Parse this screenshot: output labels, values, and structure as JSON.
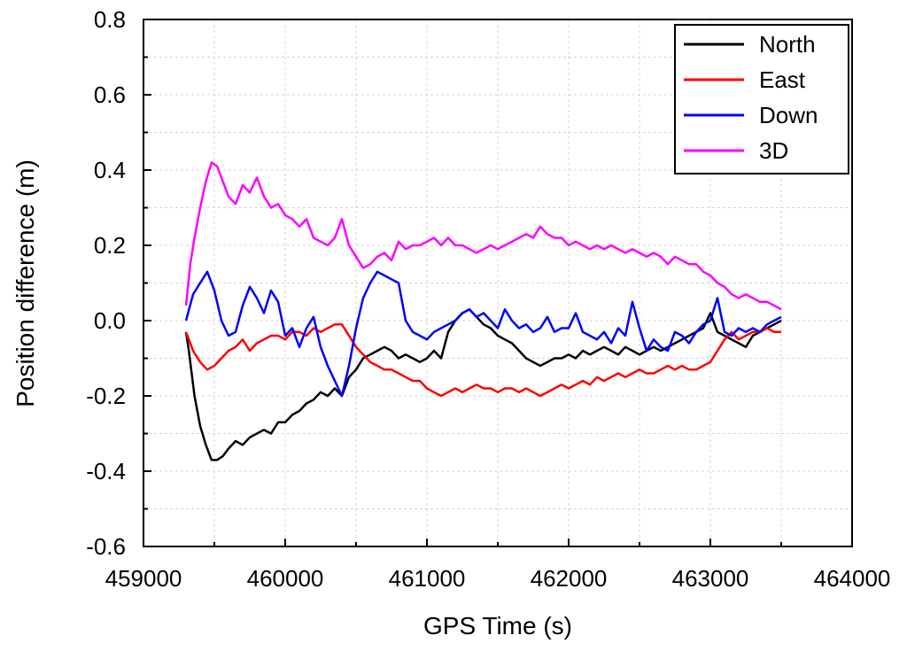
{
  "chart_data": {
    "type": "line",
    "xlabel": "GPS Time (s)",
    "ylabel": "Position difference (m)",
    "xlim": [
      459000,
      464000
    ],
    "ylim": [
      -0.6,
      0.8
    ],
    "x_ticks": [
      459000,
      460000,
      461000,
      462000,
      463000,
      464000
    ],
    "x_tick_labels": [
      "459000",
      "460000",
      "461000",
      "462000",
      "463000",
      "464000"
    ],
    "y_ticks": [
      -0.6,
      -0.4,
      -0.2,
      0.0,
      0.2,
      0.4,
      0.6,
      0.8
    ],
    "y_tick_labels": [
      "-0.6",
      "-0.4",
      "-0.2",
      "0.0",
      "0.2",
      "0.4",
      "0.6",
      "0.8"
    ],
    "grid": true,
    "legend_position": "top-right",
    "series": [
      {
        "name": "North",
        "color": "#000000",
        "x": [
          459300,
          459320,
          459360,
          459400,
          459440,
          459480,
          459520,
          459560,
          459600,
          459650,
          459700,
          459750,
          459800,
          459850,
          459900,
          459950,
          460000,
          460050,
          460100,
          460150,
          460200,
          460250,
          460300,
          460350,
          460400,
          460450,
          460500,
          460550,
          460600,
          460650,
          460700,
          460750,
          460800,
          460850,
          460900,
          460950,
          461000,
          461050,
          461100,
          461150,
          461200,
          461250,
          461300,
          461350,
          461400,
          461450,
          461500,
          461550,
          461600,
          461650,
          461700,
          461750,
          461800,
          461850,
          461900,
          461950,
          462000,
          462050,
          462100,
          462150,
          462200,
          462250,
          462300,
          462350,
          462400,
          462450,
          462500,
          462550,
          462600,
          462650,
          462700,
          462750,
          462800,
          462850,
          462900,
          462950,
          463000,
          463050,
          463100,
          463150,
          463200,
          463250,
          463300,
          463350,
          463400,
          463450,
          463500
        ],
        "y": [
          -0.03,
          -0.08,
          -0.2,
          -0.28,
          -0.33,
          -0.37,
          -0.37,
          -0.36,
          -0.34,
          -0.32,
          -0.33,
          -0.31,
          -0.3,
          -0.29,
          -0.3,
          -0.27,
          -0.27,
          -0.25,
          -0.24,
          -0.22,
          -0.21,
          -0.19,
          -0.2,
          -0.18,
          -0.2,
          -0.15,
          -0.13,
          -0.1,
          -0.09,
          -0.08,
          -0.07,
          -0.08,
          -0.1,
          -0.09,
          -0.1,
          -0.11,
          -0.1,
          -0.08,
          -0.1,
          -0.03,
          0.0,
          0.02,
          0.03,
          0.01,
          -0.01,
          -0.02,
          -0.04,
          -0.05,
          -0.06,
          -0.08,
          -0.1,
          -0.11,
          -0.12,
          -0.11,
          -0.1,
          -0.1,
          -0.09,
          -0.1,
          -0.08,
          -0.09,
          -0.08,
          -0.07,
          -0.08,
          -0.09,
          -0.07,
          -0.08,
          -0.09,
          -0.08,
          -0.07,
          -0.08,
          -0.07,
          -0.06,
          -0.05,
          -0.04,
          -0.03,
          -0.02,
          0.02,
          -0.03,
          -0.04,
          -0.05,
          -0.06,
          -0.07,
          -0.04,
          -0.03,
          -0.02,
          -0.01,
          0.0
        ]
      },
      {
        "name": "East",
        "color": "#ff0000",
        "x": [
          459300,
          459350,
          459400,
          459450,
          459500,
          459550,
          459600,
          459650,
          459700,
          459750,
          459800,
          459850,
          459900,
          459950,
          460000,
          460050,
          460100,
          460150,
          460200,
          460250,
          460300,
          460350,
          460400,
          460450,
          460500,
          460550,
          460600,
          460650,
          460700,
          460750,
          460800,
          460850,
          460900,
          460950,
          461000,
          461050,
          461100,
          461150,
          461200,
          461250,
          461300,
          461350,
          461400,
          461450,
          461500,
          461550,
          461600,
          461650,
          461700,
          461750,
          461800,
          461850,
          461900,
          461950,
          462000,
          462050,
          462100,
          462150,
          462200,
          462250,
          462300,
          462350,
          462400,
          462450,
          462500,
          462550,
          462600,
          462650,
          462700,
          462750,
          462800,
          462850,
          462900,
          462950,
          463000,
          463050,
          463100,
          463150,
          463200,
          463250,
          463300,
          463350,
          463400,
          463450,
          463500
        ],
        "y": [
          -0.03,
          -0.08,
          -0.11,
          -0.13,
          -0.12,
          -0.1,
          -0.08,
          -0.07,
          -0.05,
          -0.08,
          -0.06,
          -0.05,
          -0.04,
          -0.04,
          -0.05,
          -0.03,
          -0.03,
          -0.04,
          -0.02,
          -0.03,
          -0.02,
          -0.01,
          -0.01,
          -0.04,
          -0.07,
          -0.09,
          -0.11,
          -0.12,
          -0.13,
          -0.13,
          -0.14,
          -0.15,
          -0.16,
          -0.16,
          -0.18,
          -0.19,
          -0.2,
          -0.19,
          -0.18,
          -0.19,
          -0.18,
          -0.17,
          -0.18,
          -0.18,
          -0.19,
          -0.18,
          -0.18,
          -0.19,
          -0.18,
          -0.19,
          -0.2,
          -0.19,
          -0.18,
          -0.17,
          -0.18,
          -0.17,
          -0.16,
          -0.17,
          -0.15,
          -0.16,
          -0.15,
          -0.14,
          -0.15,
          -0.14,
          -0.13,
          -0.14,
          -0.14,
          -0.13,
          -0.12,
          -0.13,
          -0.12,
          -0.13,
          -0.13,
          -0.12,
          -0.11,
          -0.08,
          -0.05,
          -0.03,
          -0.05,
          -0.04,
          -0.03,
          -0.03,
          -0.02,
          -0.03,
          -0.03
        ]
      },
      {
        "name": "Down",
        "color": "#0000ff",
        "x": [
          459300,
          459350,
          459400,
          459450,
          459500,
          459550,
          459600,
          459650,
          459700,
          459750,
          459800,
          459850,
          459900,
          459950,
          460000,
          460050,
          460100,
          460150,
          460200,
          460250,
          460300,
          460350,
          460400,
          460450,
          460500,
          460550,
          460600,
          460650,
          460700,
          460750,
          460800,
          460850,
          460900,
          460950,
          461000,
          461050,
          461100,
          461150,
          461200,
          461250,
          461300,
          461350,
          461400,
          461450,
          461500,
          461550,
          461600,
          461650,
          461700,
          461750,
          461800,
          461850,
          461900,
          461950,
          462000,
          462050,
          462100,
          462150,
          462200,
          462250,
          462300,
          462350,
          462400,
          462450,
          462500,
          462550,
          462600,
          462650,
          462700,
          462750,
          462800,
          462850,
          462900,
          462950,
          463000,
          463050,
          463100,
          463150,
          463200,
          463250,
          463300,
          463350,
          463400,
          463450,
          463500
        ],
        "y": [
          0.0,
          0.07,
          0.1,
          0.13,
          0.08,
          0.0,
          -0.04,
          -0.03,
          0.04,
          0.09,
          0.06,
          0.02,
          0.08,
          0.05,
          -0.04,
          -0.02,
          -0.07,
          -0.02,
          0.01,
          -0.07,
          -0.12,
          -0.16,
          -0.2,
          -0.12,
          -0.02,
          0.06,
          0.1,
          0.13,
          0.12,
          0.11,
          0.1,
          0.0,
          -0.03,
          -0.04,
          -0.05,
          -0.03,
          -0.02,
          -0.01,
          0.0,
          0.02,
          0.03,
          0.01,
          0.02,
          0.0,
          -0.02,
          0.03,
          0.0,
          -0.02,
          -0.01,
          -0.03,
          -0.02,
          0.01,
          -0.03,
          -0.02,
          -0.02,
          0.02,
          -0.03,
          -0.04,
          -0.05,
          -0.03,
          -0.06,
          -0.02,
          -0.04,
          0.05,
          -0.02,
          -0.08,
          -0.05,
          -0.07,
          -0.08,
          -0.03,
          -0.04,
          -0.06,
          -0.03,
          -0.01,
          0.0,
          0.06,
          -0.03,
          -0.04,
          -0.02,
          -0.03,
          -0.02,
          -0.03,
          -0.01,
          0.0,
          0.01
        ]
      },
      {
        "name": "3D",
        "color": "#ff00ff",
        "x": [
          459300,
          459330,
          459360,
          459400,
          459440,
          459480,
          459520,
          459560,
          459600,
          459650,
          459700,
          459750,
          459800,
          459850,
          459900,
          459950,
          460000,
          460050,
          460100,
          460150,
          460200,
          460250,
          460300,
          460350,
          460400,
          460450,
          460500,
          460550,
          460600,
          460650,
          460700,
          460750,
          460800,
          460850,
          460900,
          460950,
          461000,
          461050,
          461100,
          461150,
          461200,
          461250,
          461300,
          461350,
          461400,
          461450,
          461500,
          461550,
          461600,
          461650,
          461700,
          461750,
          461800,
          461850,
          461900,
          461950,
          462000,
          462050,
          462100,
          462150,
          462200,
          462250,
          462300,
          462350,
          462400,
          462450,
          462500,
          462550,
          462600,
          462650,
          462700,
          462750,
          462800,
          462850,
          462900,
          462950,
          463000,
          463050,
          463100,
          463150,
          463200,
          463250,
          463300,
          463350,
          463400,
          463450,
          463500
        ],
        "y": [
          0.04,
          0.15,
          0.22,
          0.3,
          0.37,
          0.42,
          0.41,
          0.37,
          0.33,
          0.31,
          0.36,
          0.34,
          0.38,
          0.33,
          0.3,
          0.31,
          0.28,
          0.27,
          0.25,
          0.27,
          0.22,
          0.21,
          0.2,
          0.22,
          0.27,
          0.2,
          0.17,
          0.14,
          0.15,
          0.17,
          0.18,
          0.16,
          0.21,
          0.19,
          0.2,
          0.2,
          0.21,
          0.22,
          0.2,
          0.22,
          0.2,
          0.2,
          0.19,
          0.18,
          0.19,
          0.2,
          0.19,
          0.2,
          0.21,
          0.22,
          0.23,
          0.22,
          0.25,
          0.23,
          0.22,
          0.22,
          0.2,
          0.21,
          0.2,
          0.19,
          0.2,
          0.19,
          0.2,
          0.19,
          0.18,
          0.19,
          0.18,
          0.17,
          0.18,
          0.17,
          0.15,
          0.17,
          0.16,
          0.15,
          0.15,
          0.13,
          0.12,
          0.1,
          0.09,
          0.07,
          0.06,
          0.07,
          0.06,
          0.05,
          0.05,
          0.04,
          0.03
        ]
      }
    ]
  }
}
